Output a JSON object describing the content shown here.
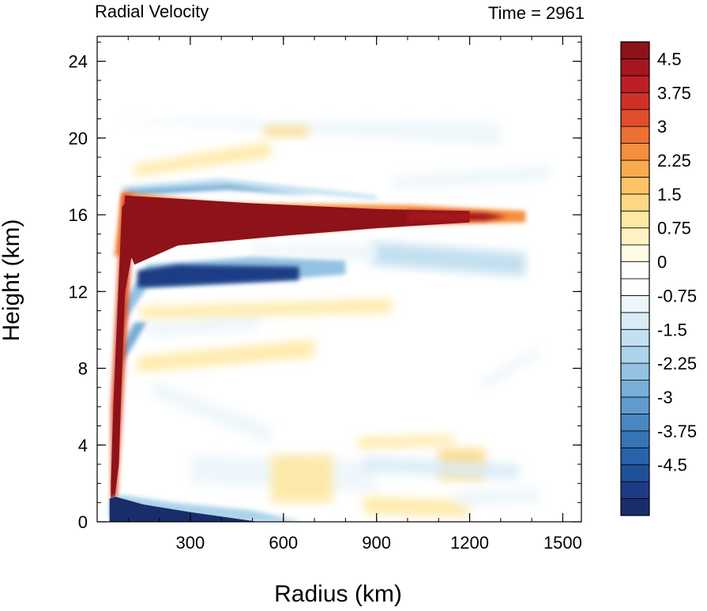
{
  "chart_data": {
    "type": "heatmap",
    "title_left": "Radial Velocity",
    "title_right": "Time = 2961",
    "xlabel": "Radius (km)",
    "ylabel": "Height (km)",
    "xlim": [
      0,
      1560
    ],
    "ylim": [
      0,
      25.3
    ],
    "xticks": [
      {
        "value": 300,
        "label": "300"
      },
      {
        "value": 600,
        "label": "600"
      },
      {
        "value": 900,
        "label": "900"
      },
      {
        "value": 1200,
        "label": "1200"
      },
      {
        "value": 1500,
        "label": "1500"
      }
    ],
    "yticks": [
      {
        "value": 0,
        "label": "0"
      },
      {
        "value": 4,
        "label": "4"
      },
      {
        "value": 8,
        "label": "8"
      },
      {
        "value": 12,
        "label": "12"
      },
      {
        "value": 16,
        "label": "16"
      },
      {
        "value": 20,
        "label": "20"
      },
      {
        "value": 24,
        "label": "24"
      }
    ],
    "colorbar": {
      "min": -5.25,
      "max": 5.25,
      "step": 0.375,
      "labels": [
        {
          "value": 4.5,
          "label": "4.5"
        },
        {
          "value": 3.75,
          "label": "3.75"
        },
        {
          "value": 3,
          "label": "3"
        },
        {
          "value": 2.25,
          "label": "2.25"
        },
        {
          "value": 1.5,
          "label": "1.5"
        },
        {
          "value": 0.75,
          "label": "0.75"
        },
        {
          "value": 0,
          "label": "0"
        },
        {
          "value": -0.75,
          "label": "-0.75"
        },
        {
          "value": -1.5,
          "label": "-1.5"
        },
        {
          "value": -2.25,
          "label": "-2.25"
        },
        {
          "value": -3,
          "label": "-3"
        },
        {
          "value": -3.75,
          "label": "-3.75"
        },
        {
          "value": -4.5,
          "label": "-4.5"
        }
      ],
      "colors": [
        "#1a2d6b",
        "#1d3c85",
        "#21509b",
        "#2a62ac",
        "#3774b8",
        "#4a88c3",
        "#5f9bcd",
        "#78afd8",
        "#93c2e2",
        "#abd3ea",
        "#c3e0f0",
        "#d9ecf6",
        "#edf6fb",
        "#ffffff",
        "#ffffff",
        "#fffbe6",
        "#fff3c4",
        "#fee8a2",
        "#fdd883",
        "#fcc466",
        "#f9ab4e",
        "#f58f3c",
        "#ec7032",
        "#e04e2c",
        "#cf3127",
        "#bc1f24",
        "#a5161f",
        "#8e1219"
      ]
    },
    "features": [
      {
        "name": "inflow-layer-core",
        "r_range": [
          40,
          660
        ],
        "z_range": [
          0,
          1.3
        ],
        "peak_value": -5.5
      },
      {
        "name": "eyewall-updraft-column",
        "r_range": [
          40,
          110
        ],
        "z_range": [
          0,
          17
        ],
        "peak_value": 5.5
      },
      {
        "name": "upper-outflow-jet",
        "r_range": [
          60,
          1380
        ],
        "z_range": [
          13.8,
          17
        ],
        "peak_value": 5.5
      },
      {
        "name": "lower-return-flow",
        "r_range": [
          80,
          800
        ],
        "z_range": [
          12,
          13.6
        ],
        "peak_value": -5.0
      },
      {
        "name": "cap-inflow",
        "r_range": [
          80,
          900
        ],
        "z_range": [
          17,
          17.6
        ],
        "peak_value": -2.5
      },
      {
        "name": "outer-outflow-branch",
        "r_range": [
          900,
          1400
        ],
        "z_range": [
          13,
          14.5
        ],
        "peak_value": -1.8
      }
    ]
  }
}
